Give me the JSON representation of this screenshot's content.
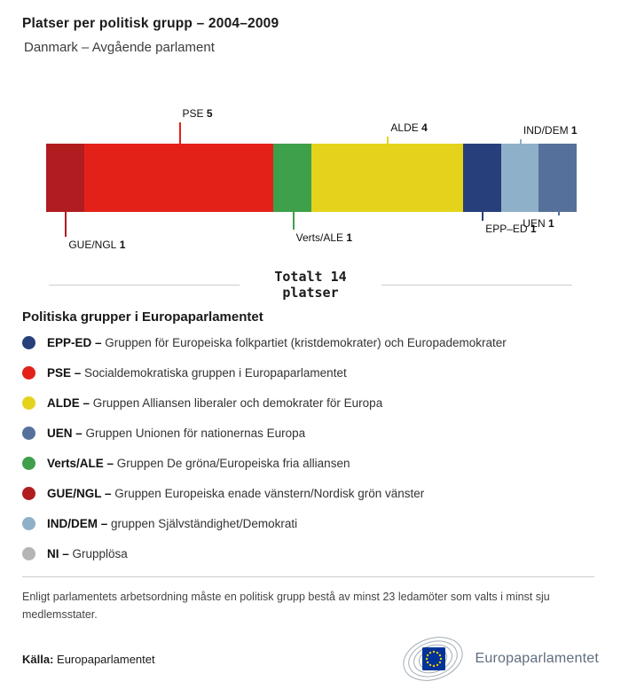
{
  "header": {
    "title": "Platser per politisk grupp – 2004–2009",
    "subtitle": "Danmark – Avgående parlament"
  },
  "chart_data": {
    "type": "bar",
    "variant": "stacked-horizontal-single-bar",
    "title": "Platser per politisk grupp – 2004–2009",
    "subtitle": "Danmark – Avgående parlament",
    "total_seats": 14,
    "total_label_line1": "Totalt 14",
    "total_label_line2": "platser",
    "legend_position": "below",
    "segments": [
      {
        "name": "GUE/NGL",
        "seats": 1,
        "color": "#b01c20",
        "callout": {
          "side": "below",
          "len": 28,
          "align": "left"
        }
      },
      {
        "name": "PSE",
        "seats": 5,
        "color": "#e32119",
        "callout": {
          "side": "above",
          "len": 24,
          "align": "left"
        }
      },
      {
        "name": "Verts/ALE",
        "seats": 1,
        "color": "#3fa04b",
        "callout": {
          "side": "below",
          "len": 20,
          "align": "left"
        }
      },
      {
        "name": "ALDE",
        "seats": 4,
        "color": "#e5d31b",
        "callout": {
          "side": "above",
          "len": 8,
          "align": "left"
        }
      },
      {
        "name": "EPP–ED",
        "seats": 1,
        "color": "#27407c",
        "callout": {
          "side": "below",
          "len": 10,
          "align": "left"
        }
      },
      {
        "name": "IND/DEM",
        "seats": 1,
        "color": "#8fb0c9",
        "callout": {
          "side": "above",
          "len": 5,
          "align": "left"
        }
      },
      {
        "name": "UEN",
        "seats": 1,
        "color": "#55719b",
        "callout": {
          "side": "below",
          "len": 4,
          "align": "right"
        }
      }
    ]
  },
  "legend": {
    "title": "Politiska grupper i Europaparlamentet",
    "items": [
      {
        "name": "EPP-ED",
        "description": "Gruppen för Europeiska folkpartiet (kristdemokrater) och Europademokrater",
        "color": "#27407c"
      },
      {
        "name": "PSE",
        "description": "Socialdemokratiska gruppen i Europaparlamentet",
        "color": "#e32119"
      },
      {
        "name": "ALDE",
        "description": "Gruppen Alliansen liberaler och demokrater för Europa",
        "color": "#e5d31b"
      },
      {
        "name": "UEN",
        "description": "Gruppen Unionen för nationernas Europa",
        "color": "#55719b"
      },
      {
        "name": "Verts/ALE",
        "description": "Gruppen De gröna/Europeiska fria alliansen",
        "color": "#3fa04b"
      },
      {
        "name": "GUE/NGL",
        "description": "Gruppen Europeiska enade vänstern/Nordisk grön vänster",
        "color": "#b01c20"
      },
      {
        "name": "IND/DEM",
        "description": "gruppen Självständighet/Demokrati",
        "color": "#8fb0c9"
      },
      {
        "name": "NI",
        "description": "Grupplösa",
        "color": "#b5b5b5"
      }
    ]
  },
  "footnote": "Enligt parlamentets arbetsordning måste en politisk grupp bestå av minst 23 ledamöter som valts i minst sju medlemsstater.",
  "source": {
    "label": "Källa:",
    "text": "Europaparlamentet"
  },
  "logo": {
    "wordmark": "Europaparlamentet"
  }
}
